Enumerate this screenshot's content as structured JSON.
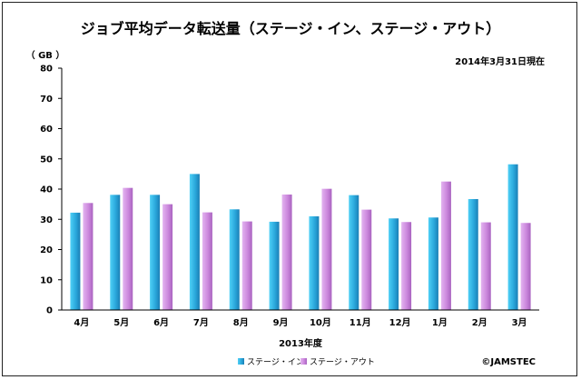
{
  "chart_data": {
    "type": "bar",
    "title": "ジョブ平均データ転送量（ステージ・イン、ステージ・アウト）",
    "date_note": "2014年3月31日現在",
    "y_unit": "（ GB ）",
    "xlabel": "2013年度",
    "ylim": [
      0,
      80
    ],
    "yticks": [
      0,
      10,
      20,
      30,
      40,
      50,
      60,
      70,
      80
    ],
    "grid": false,
    "legend_position": "bottom",
    "categories": [
      "4月",
      "5月",
      "6月",
      "7月",
      "8月",
      "9月",
      "10月",
      "11月",
      "12月",
      "1月",
      "2月",
      "3月"
    ],
    "series": [
      {
        "name": "ステージ・イン",
        "color": "#2aa8dc",
        "values": [
          32.2,
          38.1,
          38.1,
          45.0,
          33.3,
          29.2,
          31.0,
          38.0,
          30.3,
          30.6,
          36.7,
          48.2
        ]
      },
      {
        "name": "ステージ・アウト",
        "color": "#cc88dd",
        "values": [
          35.4,
          40.4,
          35.0,
          32.3,
          29.3,
          38.2,
          40.1,
          33.2,
          29.1,
          42.5,
          29.0,
          28.8
        ]
      }
    ],
    "copyright": "©JAMSTEC"
  }
}
